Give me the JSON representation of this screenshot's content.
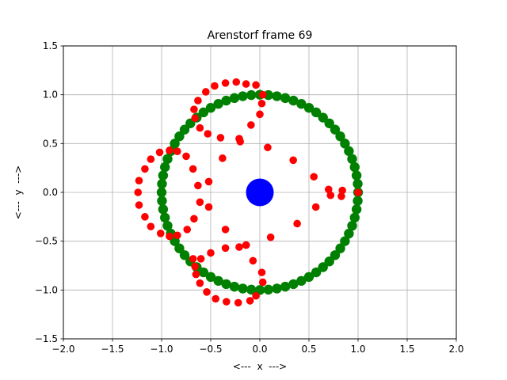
{
  "chart_data": {
    "type": "scatter",
    "title": "Arenstorf frame 69",
    "xlabel": "<---  x  --->",
    "ylabel": "<---  y  --->",
    "xlim": [
      -2.0,
      2.0
    ],
    "ylim": [
      -1.5,
      1.5
    ],
    "x_ticks": [
      -2.0,
      -1.5,
      -1.0,
      -0.5,
      0.0,
      0.5,
      1.0,
      1.5,
      2.0
    ],
    "y_ticks": [
      -1.5,
      -1.0,
      -0.5,
      0.0,
      0.5,
      1.0,
      1.5
    ],
    "x_tick_labels": [
      "−2.0",
      "−1.5",
      "−1.0",
      "−0.5",
      "0.0",
      "0.5",
      "1.0",
      "1.5",
      "2.0"
    ],
    "y_tick_labels": [
      "−1.5",
      "−1.0",
      "−0.5",
      "0.0",
      "0.5",
      "1.0",
      "1.5"
    ],
    "grid": true,
    "colors": {
      "earth": "#0000ff",
      "moon_orbit": "#008000",
      "trajectory": "#ff0000",
      "grid": "#b0b0b0"
    },
    "series": [
      {
        "role": "central-body",
        "color": "#0000ff",
        "marker_size": "large",
        "points": [
          [
            0.0,
            0.0
          ]
        ]
      },
      {
        "role": "moon-orbit",
        "color": "#008000",
        "marker_size": "medium",
        "shape": "unit circle",
        "radius": 1.0,
        "count": 72
      },
      {
        "role": "trajectory",
        "color": "#ff0000",
        "marker_size": "small",
        "points": [
          [
            -1.23,
            0.12
          ],
          [
            -1.24,
            0.0
          ],
          [
            -1.23,
            -0.13
          ],
          [
            -1.17,
            -0.25
          ],
          [
            -1.11,
            -0.35
          ],
          [
            -1.01,
            -0.42
          ],
          [
            -0.92,
            -0.45
          ],
          [
            -0.84,
            -0.44
          ],
          [
            -0.74,
            -0.38
          ],
          [
            -0.67,
            -0.27
          ],
          [
            -0.61,
            -0.1
          ],
          [
            -0.63,
            0.07
          ],
          [
            -0.68,
            0.24
          ],
          [
            -0.75,
            0.37
          ],
          [
            -0.84,
            0.42
          ],
          [
            -0.92,
            0.43
          ],
          [
            -1.02,
            0.41
          ],
          [
            -1.11,
            0.34
          ],
          [
            -1.17,
            0.24
          ],
          [
            -0.68,
            -0.68
          ],
          [
            -0.66,
            -0.76
          ],
          [
            -0.65,
            -0.84
          ],
          [
            -0.61,
            -0.93
          ],
          [
            -0.54,
            -1.02
          ],
          [
            -0.45,
            -1.09
          ],
          [
            -0.34,
            -1.12
          ],
          [
            -0.22,
            -1.13
          ],
          [
            -0.1,
            -1.11
          ],
          [
            -0.04,
            -1.06
          ],
          [
            0.03,
            -0.92
          ],
          [
            0.02,
            -0.82
          ],
          [
            -0.07,
            -0.7
          ],
          [
            -0.14,
            -0.54
          ],
          [
            -0.21,
            -0.56
          ],
          [
            -0.35,
            -0.57
          ],
          [
            -0.5,
            -0.62
          ],
          [
            -0.6,
            -0.68
          ],
          [
            -0.35,
            -0.38
          ],
          [
            -0.52,
            -0.15
          ],
          [
            -0.52,
            0.11
          ],
          [
            -0.38,
            0.35
          ],
          [
            -0.4,
            0.56
          ],
          [
            -0.53,
            0.6
          ],
          [
            -0.61,
            0.66
          ],
          [
            -0.66,
            0.76
          ],
          [
            -0.67,
            0.85
          ],
          [
            -0.63,
            0.94
          ],
          [
            -0.55,
            1.03
          ],
          [
            -0.46,
            1.09
          ],
          [
            -0.35,
            1.12
          ],
          [
            -0.24,
            1.13
          ],
          [
            -0.14,
            1.11
          ],
          [
            -0.04,
            1.1
          ],
          [
            0.03,
            1.0
          ],
          [
            0.02,
            0.91
          ],
          [
            0.0,
            0.8
          ],
          [
            -0.09,
            0.69
          ],
          [
            -0.21,
            0.55
          ],
          [
            -0.2,
            0.52
          ],
          [
            0.08,
            0.46
          ],
          [
            0.34,
            0.33
          ],
          [
            0.55,
            0.16
          ],
          [
            0.7,
            0.03
          ],
          [
            0.72,
            -0.03
          ],
          [
            0.57,
            -0.15
          ],
          [
            0.38,
            -0.32
          ],
          [
            0.11,
            -0.46
          ],
          [
            -0.14,
            -0.54
          ],
          [
            0.84,
            0.02
          ],
          [
            0.83,
            -0.04
          ],
          [
            1.0,
            0.0
          ]
        ]
      }
    ]
  }
}
